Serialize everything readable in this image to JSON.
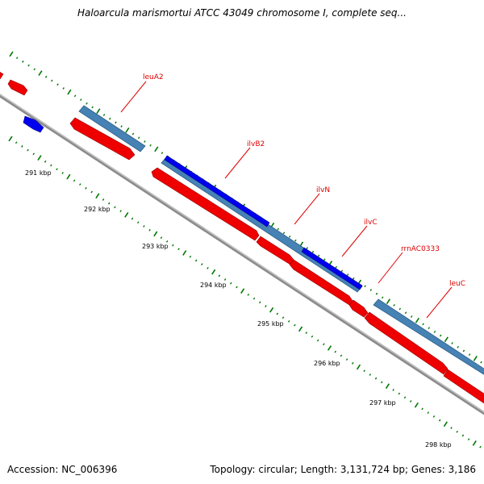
{
  "title": "Haloarcula marismortui ATCC 43049 chromosome I, complete seq...",
  "footer": {
    "accession": "Accession: NC_006396",
    "summary": "Topology: circular; Length: 3,131,724 bp; Genes: 3,186"
  },
  "colors": {
    "forward_orf": "#4682b4",
    "forward_gene": "#0000ee",
    "reverse_gene": "#ee0000",
    "backbone": "#808080",
    "tick": "#007700",
    "label": "#dd0000"
  },
  "axis_labels": [
    "291 kbp",
    "292 kbp",
    "293 kbp",
    "294 kbp",
    "295 kbp",
    "296 kbp",
    "297 kbp",
    "298 kbp"
  ],
  "gene_labels": [
    "leuA2",
    "ilvB2",
    "ilvN",
    "ilvC",
    "rrnAC0333",
    "leuC"
  ]
}
